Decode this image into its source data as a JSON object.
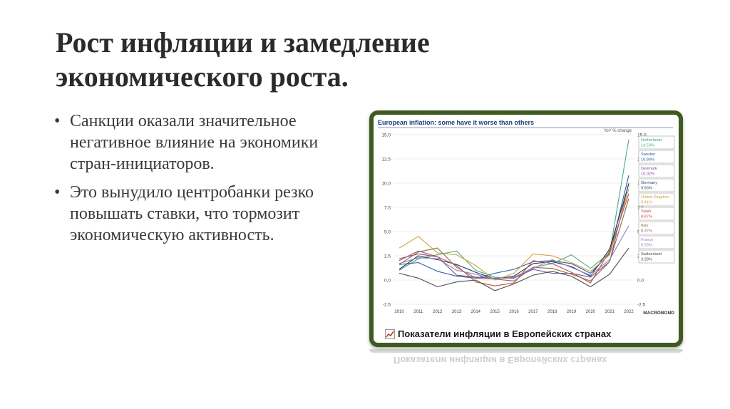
{
  "slide": {
    "title": "Рост инфляции и замедление экономического роста.",
    "bullets": [
      "Санкции оказали значительное негативное влияние на экономики стран-инициаторов.",
      "Это вынудило центробанки резко повышать ставки, что тормозит экономическую активность."
    ],
    "bullet_glyph": "•",
    "frame_color": "#3f5a21"
  },
  "figure": {
    "caption": "Показатели инфляции в Европейских странах",
    "source_logo": "MACROBOND"
  },
  "chart_data": {
    "type": "line",
    "title": "European inflation: some have it worse than others",
    "ylabel": "YoY % change",
    "ylim": [
      -2.5,
      15
    ],
    "yticks": [
      "15.0",
      "12.5",
      "10.0",
      "7.5",
      "5.0",
      "2.5",
      "0.0",
      "-2.5"
    ],
    "x_labels": [
      "2010",
      "2011",
      "2012",
      "2013",
      "2014",
      "2015",
      "2016",
      "2017",
      "2018",
      "2019",
      "2020",
      "2021",
      "2022"
    ],
    "grid": true,
    "legend_position": "right",
    "series": [
      {
        "name": "Netherlands",
        "last": "14.53%",
        "color": "#4aa88c",
        "values": [
          1.0,
          2.2,
          2.6,
          3.0,
          1.0,
          0.3,
          0.2,
          1.3,
          1.7,
          2.6,
          1.2,
          2.8,
          14.5
        ]
      },
      {
        "name": "Sweden",
        "last": "10.84%",
        "color": "#2b5f9e",
        "values": [
          1.6,
          1.8,
          0.9,
          0.4,
          0.2,
          0.7,
          1.1,
          1.9,
          2.0,
          1.7,
          0.7,
          2.7,
          10.8
        ]
      },
      {
        "name": "Denmark",
        "last": "10.02%",
        "color": "#7a4f9a",
        "values": [
          2.2,
          2.7,
          2.4,
          0.5,
          0.3,
          0.2,
          0.2,
          1.1,
          0.7,
          0.7,
          0.3,
          1.9,
          10.0
        ]
      },
      {
        "name": "Germany",
        "last": "9.93%",
        "color": "#1f3c5a",
        "values": [
          1.1,
          2.5,
          2.1,
          1.6,
          0.8,
          0.1,
          0.4,
          1.7,
          1.9,
          1.4,
          0.4,
          3.2,
          9.9
        ]
      },
      {
        "name": "United Kingdom",
        "last": "9.41%",
        "color": "#d4a53a",
        "values": [
          3.3,
          4.5,
          2.8,
          2.6,
          1.5,
          0.0,
          0.7,
          2.7,
          2.5,
          1.8,
          0.9,
          2.6,
          9.4
        ]
      },
      {
        "name": "Spain",
        "last": "8.87%",
        "color": "#c0504d",
        "values": [
          2.0,
          3.0,
          2.4,
          1.5,
          -0.2,
          -0.6,
          -0.3,
          2.0,
          1.7,
          0.8,
          -0.3,
          3.0,
          8.9
        ]
      },
      {
        "name": "Italy",
        "last": "8.37%",
        "color": "#8c6d4f",
        "values": [
          1.6,
          2.9,
          3.3,
          1.3,
          0.2,
          0.1,
          -0.1,
          1.3,
          1.2,
          0.6,
          -0.1,
          1.9,
          8.4
        ]
      },
      {
        "name": "France",
        "last": "5.55%",
        "color": "#9b7fbf",
        "values": [
          1.7,
          2.3,
          2.2,
          1.0,
          0.6,
          0.1,
          0.3,
          1.2,
          2.1,
          1.3,
          0.5,
          2.1,
          5.6
        ]
      },
      {
        "name": "Switzerland",
        "last": "3.28%",
        "color": "#4d4d4d",
        "values": [
          0.7,
          0.2,
          -0.7,
          -0.2,
          0.0,
          -1.1,
          -0.4,
          0.5,
          0.9,
          0.4,
          -0.7,
          0.6,
          3.3
        ]
      }
    ]
  }
}
